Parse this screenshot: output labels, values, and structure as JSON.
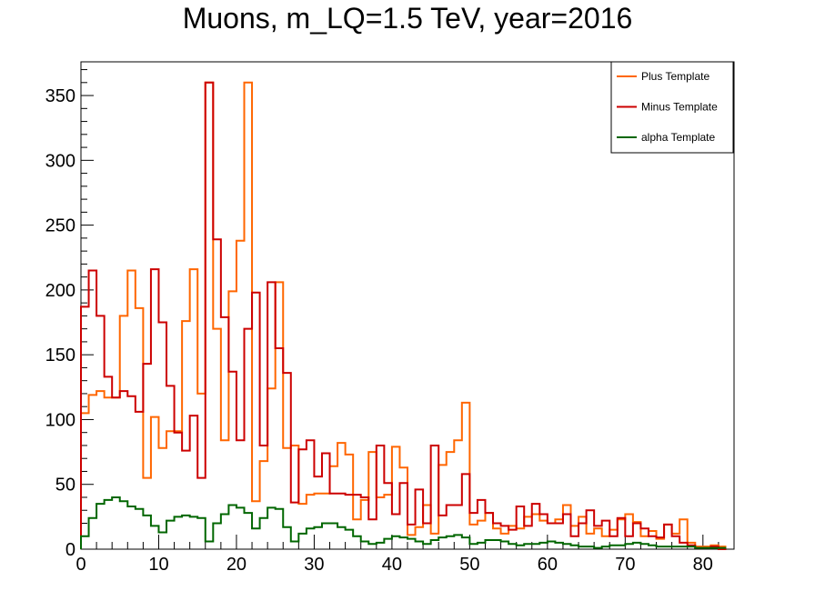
{
  "chart_data": {
    "type": "histogram",
    "title": "Muons, m_LQ=1.5 TeV, year=2016",
    "xlabel": "",
    "ylabel": "",
    "xlim": [
      0,
      84
    ],
    "ylim": [
      0,
      376
    ],
    "bin_width": 1,
    "x_ticks": [
      "0",
      "10",
      "20",
      "30",
      "40",
      "50",
      "60",
      "70",
      "80"
    ],
    "y_ticks": [
      "0",
      "50",
      "100",
      "150",
      "200",
      "250",
      "300",
      "350"
    ],
    "legend": {
      "position": "top-right"
    },
    "series": [
      {
        "name": "Plus Template",
        "color": "#ff6600",
        "values": [
          105,
          119,
          122,
          117,
          117,
          180,
          215,
          186,
          55,
          102,
          78,
          91,
          91,
          176,
          216,
          120,
          360,
          170,
          84,
          199,
          238,
          360,
          37,
          68,
          124,
          206,
          78,
          80,
          35,
          42,
          43,
          43,
          64,
          82,
          73,
          23,
          38,
          75,
          40,
          42,
          79,
          63,
          11,
          17,
          34,
          12,
          65,
          75,
          84,
          113,
          19,
          22,
          28,
          16,
          12,
          18,
          16,
          25,
          27,
          22,
          20,
          23,
          34,
          18,
          25,
          12,
          16,
          10,
          15,
          23,
          27,
          21,
          10,
          14,
          8,
          19,
          12,
          23,
          5,
          2,
          2,
          3,
          2
        ]
      },
      {
        "name": "Minus Template",
        "color": "#cc0000",
        "values": [
          187,
          215,
          180,
          133,
          117,
          122,
          118,
          106,
          143,
          216,
          175,
          126,
          90,
          76,
          103,
          55,
          360,
          239,
          179,
          137,
          84,
          170,
          198,
          80,
          206,
          155,
          136,
          36,
          77,
          84,
          56,
          74,
          43,
          43,
          42,
          42,
          40,
          23,
          80,
          51,
          27,
          51,
          19,
          46,
          20,
          80,
          26,
          34,
          34,
          58,
          28,
          38,
          28,
          20,
          18,
          15,
          33,
          18,
          35,
          27,
          20,
          20,
          27,
          10,
          20,
          30,
          18,
          22,
          10,
          24,
          10,
          20,
          16,
          10,
          9,
          19,
          10,
          5,
          3,
          1,
          1,
          2,
          0
        ]
      },
      {
        "name": "alpha Template",
        "color": "#006600",
        "values": [
          10,
          24,
          35,
          38,
          40,
          37,
          33,
          31,
          26,
          18,
          13,
          22,
          25,
          26,
          25,
          24,
          6,
          20,
          27,
          34,
          32,
          28,
          16,
          24,
          32,
          31,
          17,
          6,
          12,
          16,
          17,
          20,
          20,
          17,
          15,
          10,
          6,
          4,
          5,
          8,
          10,
          9,
          8,
          6,
          4,
          7,
          9,
          10,
          11,
          9,
          4,
          5,
          7,
          7,
          6,
          4,
          3,
          4,
          4,
          5,
          6,
          5,
          4,
          3,
          2,
          2,
          1,
          2,
          3,
          3,
          4,
          5,
          4,
          3,
          2,
          2,
          2,
          2,
          2,
          1,
          1,
          1,
          1
        ]
      }
    ]
  }
}
